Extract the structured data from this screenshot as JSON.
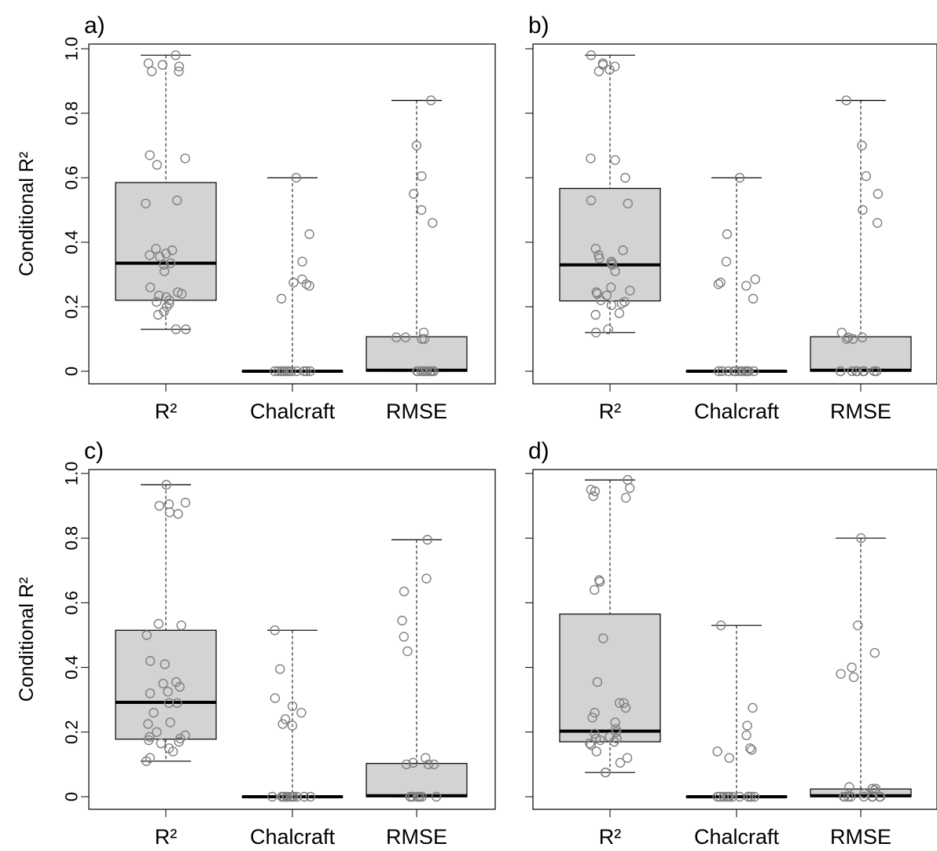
{
  "figure": {
    "y_axis_label": "Conditional R²"
  },
  "colors": {
    "box_fill": "#d3d3d3",
    "point_stroke": "#808080",
    "median": "#000000"
  },
  "chart_data": [
    {
      "type": "box",
      "panel_label": "a)",
      "categories": [
        "R²",
        "Chalcraft",
        "RMSE"
      ],
      "ylabel": "Conditional R²",
      "ylim": [
        0,
        1.0
      ],
      "yticks": [
        "0",
        "0.2",
        "0.4",
        "0.6",
        "0.8",
        "1.0"
      ],
      "boxes": [
        {
          "category": "R²",
          "whisker_low": 0.13,
          "q1": 0.22,
          "median": 0.335,
          "q3": 0.585,
          "whisker_high": 0.98,
          "points": [
            0.98,
            0.955,
            0.95,
            0.945,
            0.93,
            0.93,
            0.67,
            0.66,
            0.64,
            0.53,
            0.52,
            0.38,
            0.375,
            0.365,
            0.36,
            0.355,
            0.335,
            0.33,
            0.31,
            0.26,
            0.245,
            0.24,
            0.235,
            0.23,
            0.22,
            0.215,
            0.21,
            0.2,
            0.185,
            0.175,
            0.13,
            0.13
          ]
        },
        {
          "category": "Chalcraft",
          "whisker_low": 0.0,
          "q1": 0.0,
          "median": 0.0,
          "q3": 0.0,
          "whisker_high": 0.6,
          "points": [
            0.6,
            0.425,
            0.34,
            0.285,
            0.275,
            0.27,
            0.265,
            0.225,
            0,
            0,
            0,
            0,
            0,
            0,
            0,
            0,
            0,
            0,
            0,
            0
          ]
        },
        {
          "category": "RMSE",
          "whisker_low": 0.0,
          "q1": 0.0,
          "median": 0.003,
          "q3": 0.107,
          "whisker_high": 0.84,
          "points": [
            0.84,
            0.7,
            0.605,
            0.55,
            0.5,
            0.46,
            0.12,
            0.105,
            0.105,
            0.1,
            0.1,
            0,
            0,
            0,
            0,
            0,
            0,
            0,
            0,
            0
          ]
        }
      ]
    },
    {
      "type": "box",
      "panel_label": "b)",
      "categories": [
        "R²",
        "Chalcraft",
        "RMSE"
      ],
      "ylabel": "",
      "ylim": [
        0,
        1.0
      ],
      "yticks": [],
      "boxes": [
        {
          "category": "R²",
          "whisker_low": 0.12,
          "q1": 0.218,
          "median": 0.33,
          "q3": 0.567,
          "whisker_high": 0.98,
          "points": [
            0.98,
            0.955,
            0.95,
            0.945,
            0.935,
            0.93,
            0.66,
            0.655,
            0.6,
            0.53,
            0.52,
            0.38,
            0.375,
            0.36,
            0.35,
            0.34,
            0.335,
            0.33,
            0.31,
            0.26,
            0.25,
            0.245,
            0.24,
            0.235,
            0.22,
            0.215,
            0.21,
            0.205,
            0.18,
            0.175,
            0.13,
            0.12
          ]
        },
        {
          "category": "Chalcraft",
          "whisker_low": 0.0,
          "q1": 0.0,
          "median": 0.0,
          "q3": 0.0,
          "whisker_high": 0.6,
          "points": [
            0.6,
            0.425,
            0.34,
            0.285,
            0.275,
            0.27,
            0.265,
            0.225,
            0,
            0,
            0,
            0,
            0,
            0,
            0,
            0,
            0,
            0,
            0,
            0
          ]
        },
        {
          "category": "RMSE",
          "whisker_low": 0.0,
          "q1": 0.0,
          "median": 0.003,
          "q3": 0.107,
          "whisker_high": 0.84,
          "points": [
            0.84,
            0.7,
            0.605,
            0.55,
            0.5,
            0.46,
            0.12,
            0.105,
            0.105,
            0.1,
            0.1,
            0,
            0,
            0,
            0,
            0,
            0,
            0,
            0,
            0
          ]
        }
      ]
    },
    {
      "type": "box",
      "panel_label": "c)",
      "categories": [
        "R²",
        "Chalcraft",
        "RMSE"
      ],
      "ylabel": "Conditional R²",
      "ylim": [
        0,
        1.0
      ],
      "yticks": [
        "0",
        "0.2",
        "0.4",
        "0.6",
        "0.8",
        "1.0"
      ],
      "boxes": [
        {
          "category": "R²",
          "whisker_low": 0.11,
          "q1": 0.178,
          "median": 0.292,
          "q3": 0.515,
          "whisker_high": 0.965,
          "points": [
            0.965,
            0.91,
            0.905,
            0.9,
            0.88,
            0.875,
            0.535,
            0.53,
            0.5,
            0.42,
            0.41,
            0.355,
            0.35,
            0.34,
            0.325,
            0.32,
            0.29,
            0.29,
            0.26,
            0.23,
            0.225,
            0.2,
            0.19,
            0.185,
            0.18,
            0.175,
            0.17,
            0.165,
            0.15,
            0.14,
            0.12,
            0.11
          ]
        },
        {
          "category": "Chalcraft",
          "whisker_low": 0.0,
          "q1": 0.0,
          "median": 0.0,
          "q3": 0.0,
          "whisker_high": 0.515,
          "points": [
            0.515,
            0.395,
            0.305,
            0.28,
            0.26,
            0.24,
            0.225,
            0.22,
            0,
            0,
            0,
            0,
            0,
            0,
            0,
            0,
            0,
            0,
            0,
            0
          ]
        },
        {
          "category": "RMSE",
          "whisker_low": 0.0,
          "q1": 0.0,
          "median": 0.003,
          "q3": 0.103,
          "whisker_high": 0.795,
          "points": [
            0.795,
            0.675,
            0.635,
            0.545,
            0.495,
            0.45,
            0.12,
            0.105,
            0.1,
            0.1,
            0.1,
            0,
            0,
            0,
            0,
            0,
            0,
            0,
            0,
            0
          ]
        }
      ]
    },
    {
      "type": "box",
      "panel_label": "d)",
      "categories": [
        "R²",
        "Chalcraft",
        "RMSE"
      ],
      "ylabel": "",
      "ylim": [
        0,
        1.0
      ],
      "yticks": [],
      "boxes": [
        {
          "category": "R²",
          "whisker_low": 0.075,
          "q1": 0.17,
          "median": 0.203,
          "q3": 0.565,
          "whisker_high": 0.98,
          "points": [
            0.98,
            0.955,
            0.95,
            0.945,
            0.93,
            0.925,
            0.67,
            0.665,
            0.64,
            0.49,
            0.355,
            0.29,
            0.29,
            0.275,
            0.26,
            0.245,
            0.23,
            0.21,
            0.2,
            0.195,
            0.185,
            0.18,
            0.18,
            0.175,
            0.17,
            0.165,
            0.16,
            0.14,
            0.12,
            0.105,
            0.075,
            0.075
          ]
        },
        {
          "category": "Chalcraft",
          "whisker_low": 0.0,
          "q1": 0.0,
          "median": 0.0,
          "q3": 0.0,
          "whisker_high": 0.53,
          "points": [
            0.53,
            0.275,
            0.22,
            0.19,
            0.15,
            0.145,
            0.14,
            0.12,
            0,
            0,
            0,
            0,
            0,
            0,
            0,
            0,
            0,
            0,
            0,
            0
          ]
        },
        {
          "category": "RMSE",
          "whisker_low": 0.0,
          "q1": 0.0,
          "median": 0.003,
          "q3": 0.024,
          "whisker_high": 0.8,
          "points": [
            0.8,
            0.53,
            0.445,
            0.4,
            0.38,
            0.37,
            0.03,
            0.025,
            0.025,
            0.02,
            0.01,
            0,
            0,
            0,
            0,
            0,
            0,
            0,
            0,
            0
          ]
        }
      ]
    }
  ]
}
